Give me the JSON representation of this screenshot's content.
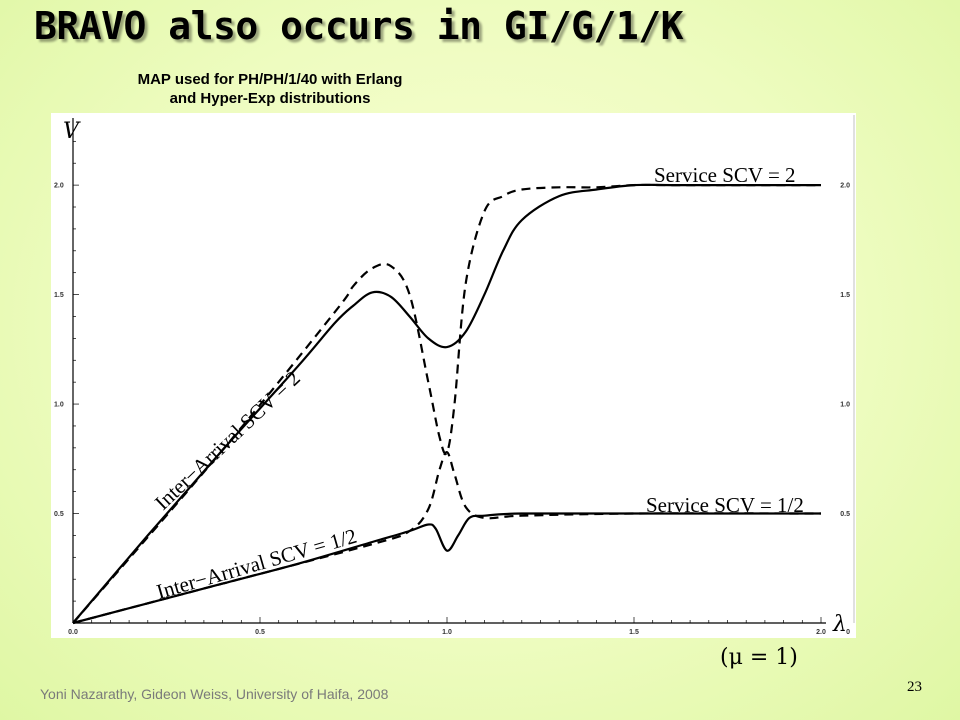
{
  "slide": {
    "title": "BRAVO also occurs in GI/G/1/K",
    "caption_line1": "MAP used for PH/PH/1/40 with Erlang",
    "caption_line2": "and Hyper-Exp distributions",
    "mu_note": "(μ = 1)",
    "footer": "Yoni Nazarathy, Gideon Weiss, University of Haifa, 2008",
    "page_number": "23"
  },
  "chart_data": {
    "type": "line",
    "title": "",
    "xlabel": "λ",
    "ylabel": "V",
    "xlim": [
      0,
      2.0
    ],
    "ylim": [
      0,
      2.27
    ],
    "x_ticks": [
      "0.0",
      "0.5",
      "1.0",
      "1.5",
      "2.0"
    ],
    "y_ticks": [
      "0.5",
      "1.0",
      "1.5",
      "2.0"
    ],
    "grid": false,
    "annotations": [
      "Service SCV = 2",
      "Service SCV = 1/2",
      "Inter−Arrival SCV = 2",
      "Inter−Arrival SCV = 1/2"
    ],
    "series": [
      {
        "style": "solid",
        "x": [
          0,
          0.2,
          0.4,
          0.6,
          0.7,
          0.75,
          0.8,
          0.85,
          0.9,
          0.95,
          1.0,
          1.05,
          1.1,
          1.15,
          1.2,
          1.3,
          1.4,
          1.5,
          1.6,
          1.8,
          2.0
        ],
        "y": [
          0,
          0.4,
          0.79,
          1.17,
          1.37,
          1.45,
          1.51,
          1.49,
          1.4,
          1.3,
          1.26,
          1.33,
          1.5,
          1.7,
          1.84,
          1.95,
          1.98,
          2.0,
          2.0,
          2.0,
          2.0
        ]
      },
      {
        "style": "dashed",
        "x": [
          0,
          0.4,
          0.7,
          0.75,
          0.8,
          0.85,
          0.9,
          0.95,
          0.98,
          1.0,
          1.02,
          1.05,
          1.1,
          1.15,
          1.2,
          1.3,
          1.4,
          1.5,
          1.6,
          1.8,
          2.0
        ],
        "y": [
          0,
          0.79,
          1.42,
          1.54,
          1.62,
          1.63,
          1.5,
          1.1,
          0.85,
          0.78,
          1.0,
          1.55,
          1.88,
          1.95,
          1.98,
          1.99,
          1.99,
          2.0,
          2.0,
          2.0,
          2.0
        ]
      },
      {
        "style": "solid",
        "x": [
          0,
          0.2,
          0.4,
          0.6,
          0.8,
          0.9,
          0.95,
          0.97,
          1.0,
          1.03,
          1.06,
          1.1,
          1.2,
          1.5,
          2.0
        ],
        "y": [
          0,
          0.09,
          0.18,
          0.27,
          0.37,
          0.42,
          0.45,
          0.43,
          0.33,
          0.4,
          0.48,
          0.49,
          0.5,
          0.5,
          0.5
        ]
      },
      {
        "style": "dashed",
        "x": [
          0,
          0.4,
          0.8,
          0.9,
          0.95,
          0.98,
          1.0,
          1.02,
          1.05,
          1.1,
          1.2,
          1.5,
          2.0
        ],
        "y": [
          0,
          0.18,
          0.36,
          0.42,
          0.52,
          0.7,
          0.78,
          0.68,
          0.53,
          0.48,
          0.49,
          0.5,
          0.5
        ]
      }
    ]
  }
}
